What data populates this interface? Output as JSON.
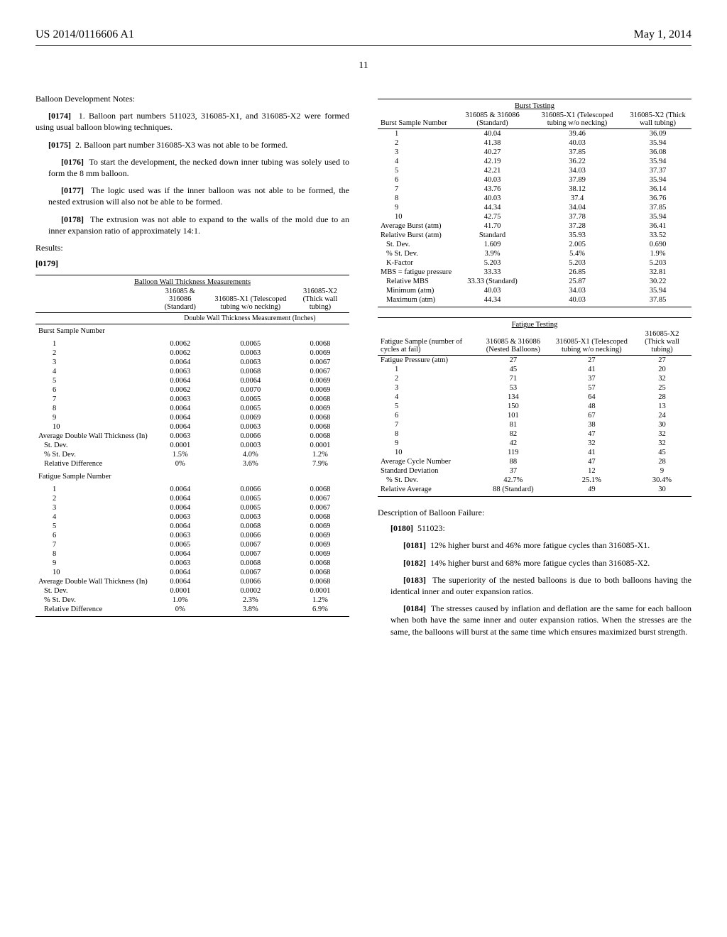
{
  "header": {
    "left": "US 2014/0116606 A1",
    "right": "May 1, 2014",
    "page": "11"
  },
  "notes_heading": "Balloon Development Notes:",
  "paras": {
    "p174": "1. Balloon part numbers 511023, 316085-X1, and 316085-X2 were formed using usual balloon blowing techniques.",
    "p175": "2. Balloon part number 316085-X3 was not able to be formed.",
    "p176": "To start the development, the necked down inner tubing was solely used to form the 8 mm balloon.",
    "p177": "The logic used was if the inner balloon was not able to be formed, the nested extrusion will also not be able to be formed.",
    "p178": "The extrusion was not able to expand to the walls of the mold due to an inner expansion ratio of approximately 14:1."
  },
  "results_label": "Results:",
  "p179_label": "[0179]",
  "table_thickness": {
    "title": "Balloon Wall Thickness Measurements",
    "cols": {
      "c1": "316085 & 316086 (Standard)",
      "c2": "316085-X1 (Telescoped tubing w/o necking)",
      "c3": "316085-X2 (Thick wall tubing)"
    },
    "sub": "Double Wall Thickness Measurement (Inches)",
    "burst_label": "Burst Sample Number",
    "burst_rows": [
      [
        "1",
        "0.0062",
        "0.0065",
        "0.0068"
      ],
      [
        "2",
        "0.0062",
        "0.0063",
        "0.0069"
      ],
      [
        "3",
        "0.0064",
        "0.0063",
        "0.0067"
      ],
      [
        "4",
        "0.0063",
        "0.0068",
        "0.0067"
      ],
      [
        "5",
        "0.0064",
        "0.0064",
        "0.0069"
      ],
      [
        "6",
        "0.0062",
        "0.0070",
        "0.0069"
      ],
      [
        "7",
        "0.0063",
        "0.0065",
        "0.0068"
      ],
      [
        "8",
        "0.0064",
        "0.0065",
        "0.0069"
      ],
      [
        "9",
        "0.0064",
        "0.0069",
        "0.0068"
      ],
      [
        "10",
        "0.0064",
        "0.0063",
        "0.0068"
      ]
    ],
    "burst_stats": [
      [
        "Average Double Wall Thickness (In)",
        "0.0063",
        "0.0066",
        "0.0068"
      ],
      [
        "St. Dev.",
        "0.0001",
        "0.0003",
        "0.0001"
      ],
      [
        "% St. Dev.",
        "1.5%",
        "4.0%",
        "1.2%"
      ],
      [
        "Relative Difference",
        "0%",
        "3.6%",
        "7.9%"
      ]
    ],
    "fatigue_label": "Fatigue Sample Number",
    "fatigue_rows": [
      [
        "1",
        "0.0064",
        "0.0066",
        "0.0068"
      ],
      [
        "2",
        "0.0064",
        "0.0065",
        "0.0067"
      ],
      [
        "3",
        "0.0064",
        "0.0065",
        "0.0067"
      ],
      [
        "4",
        "0.0063",
        "0.0063",
        "0.0068"
      ],
      [
        "5",
        "0.0064",
        "0.0068",
        "0.0069"
      ],
      [
        "6",
        "0.0063",
        "0.0066",
        "0.0069"
      ],
      [
        "7",
        "0.0065",
        "0.0067",
        "0.0069"
      ],
      [
        "8",
        "0.0064",
        "0.0067",
        "0.0069"
      ],
      [
        "9",
        "0.0063",
        "0.0068",
        "0.0068"
      ],
      [
        "10",
        "0.0064",
        "0.0067",
        "0.0068"
      ]
    ],
    "fatigue_stats": [
      [
        "Average Double Wall Thickness (In)",
        "0.0064",
        "0.0066",
        "0.0068"
      ],
      [
        "St. Dev.",
        "0.0001",
        "0.0002",
        "0.0001"
      ],
      [
        "% St. Dev.",
        "1.0%",
        "2.3%",
        "1.2%"
      ],
      [
        "Relative Difference",
        "0%",
        "3.8%",
        "6.9%"
      ]
    ]
  },
  "table_burst": {
    "title": "Burst Testing",
    "cols": {
      "h": "Burst Sample Number",
      "c1": "316085 & 316086 (Standard)",
      "c2": "316085-X1 (Telescoped tubing w/o necking)",
      "c3": "316085-X2 (Thick wall tubing)"
    },
    "rows": [
      [
        "1",
        "40.04",
        "39.46",
        "36.09"
      ],
      [
        "2",
        "41.38",
        "40.03",
        "35.94"
      ],
      [
        "3",
        "40.27",
        "37.85",
        "36.08"
      ],
      [
        "4",
        "42.19",
        "36.22",
        "35.94"
      ],
      [
        "5",
        "42.21",
        "34.03",
        "37.37"
      ],
      [
        "6",
        "40.03",
        "37.89",
        "35.94"
      ],
      [
        "7",
        "43.76",
        "38.12",
        "36.14"
      ],
      [
        "8",
        "40.03",
        "37.4",
        "36.76"
      ],
      [
        "9",
        "44.34",
        "34.04",
        "37.85"
      ],
      [
        "10",
        "42.75",
        "37.78",
        "35.94"
      ]
    ],
    "stats": [
      [
        "Average Burst (atm)",
        "41.70",
        "37.28",
        "36.41"
      ],
      [
        "Relative Burst (atm)",
        "Standard",
        "35.93",
        "33.52"
      ],
      [
        "St. Dev.",
        "1.609",
        "2.005",
        "0.690"
      ],
      [
        "% St. Dev.",
        "3.9%",
        "5.4%",
        "1.9%"
      ],
      [
        "K-Factor",
        "5.203",
        "5.203",
        "5.203"
      ],
      [
        "MBS = fatigue pressure",
        "33.33",
        "26.85",
        "32.81"
      ],
      [
        "Relative MBS",
        "33.33 (Standard)",
        "25.87",
        "30.22"
      ],
      [
        "Minimum (atm)",
        "40.03",
        "34.03",
        "35.94"
      ],
      [
        "Maximum (atm)",
        "44.34",
        "40.03",
        "37.85"
      ]
    ]
  },
  "table_fatigue": {
    "title": "Fatigue Testing",
    "cols": {
      "h": "Fatigue Sample (number of cycles at fail)",
      "c1": "316085 & 316086 (Nested Balloons)",
      "c2": "316085-X1 (Telescoped tubing w/o necking)",
      "c3": "316085-X2 (Thick wall tubing)"
    },
    "pressure": [
      "Fatigue Pressure (atm)",
      "27",
      "27",
      "27"
    ],
    "rows": [
      [
        "1",
        "45",
        "41",
        "20"
      ],
      [
        "2",
        "71",
        "37",
        "32"
      ],
      [
        "3",
        "53",
        "57",
        "25"
      ],
      [
        "4",
        "134",
        "64",
        "28"
      ],
      [
        "5",
        "150",
        "48",
        "13"
      ],
      [
        "6",
        "101",
        "67",
        "24"
      ],
      [
        "7",
        "81",
        "38",
        "30"
      ],
      [
        "8",
        "82",
        "47",
        "32"
      ],
      [
        "9",
        "42",
        "32",
        "32"
      ],
      [
        "10",
        "119",
        "41",
        "45"
      ]
    ],
    "stats": [
      [
        "Average Cycle Number",
        "88",
        "47",
        "28"
      ],
      [
        "Standard Deviation",
        "37",
        "12",
        "9"
      ],
      [
        "% St. Dev.",
        "42.7%",
        "25.1%",
        "30.4%"
      ],
      [
        "Relative Average",
        "88 (Standard)",
        "49",
        "30"
      ]
    ]
  },
  "failure_heading": "Description of Balloon Failure:",
  "p180": "511023:",
  "p181": "12% higher burst and 46% more fatigue cycles than 316085-X1.",
  "p182": "14% higher burst and 68% more fatigue cycles than 316085-X2.",
  "p183": "The superiority of the nested balloons is due to both balloons having the identical inner and outer expansion ratios.",
  "p184": "The stresses caused by inflation and deflation are the same for each balloon when both have the same inner and outer expansion ratios. When the stresses are the same, the balloons will burst at the same time which ensures maximized burst strength."
}
